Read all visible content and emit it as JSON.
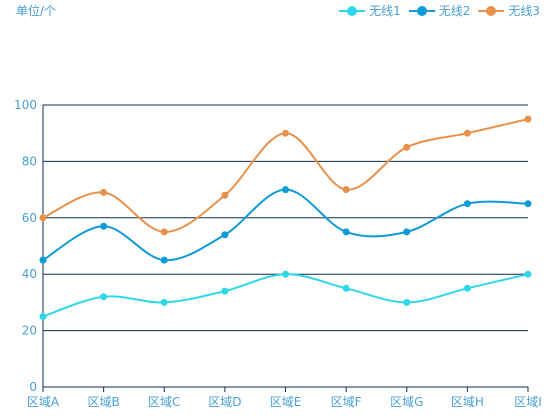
{
  "unit_label": "单位/个",
  "colors": {
    "grid": "#0d2e4f",
    "axis_text": "#4a9fd4"
  },
  "legend": [
    {
      "label": "无线1",
      "color": "#2fd8e8"
    },
    {
      "label": "无线2",
      "color": "#0f9bd7"
    },
    {
      "label": "无线3",
      "color": "#e8914a"
    }
  ],
  "chart_data": {
    "type": "line",
    "categories": [
      "区域A",
      "区域B",
      "区域C",
      "区域D",
      "区域E",
      "区域F",
      "区域G",
      "区域H",
      "区域I"
    ],
    "series": [
      {
        "name": "无线1",
        "values": [
          25,
          32,
          30,
          34,
          40,
          35,
          30,
          35,
          40
        ]
      },
      {
        "name": "无线2",
        "values": [
          45,
          57,
          45,
          54,
          70,
          55,
          55,
          65,
          65
        ]
      },
      {
        "name": "无线3",
        "values": [
          60,
          69,
          55,
          68,
          90,
          70,
          85,
          90,
          95
        ]
      }
    ],
    "ylim": [
      0,
      100
    ],
    "yticks": [
      0,
      20,
      40,
      60,
      80,
      100
    ],
    "grid": true,
    "smooth": true,
    "legend_position": "top-right"
  }
}
